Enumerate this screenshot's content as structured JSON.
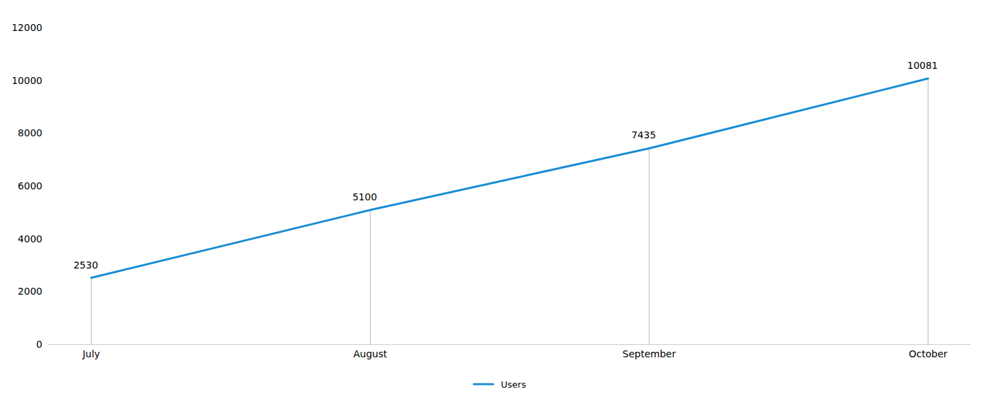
{
  "chart_data": {
    "type": "line",
    "categories": [
      "July",
      "August",
      "September",
      "October"
    ],
    "series": [
      {
        "name": "Users",
        "color": "#1a8dd4",
        "values": [
          2530,
          5100,
          7435,
          10081
        ]
      }
    ],
    "ylim": [
      0,
      12000
    ],
    "yticks": [
      0,
      2000,
      4000,
      6000,
      8000,
      10000,
      12000
    ],
    "grid": false,
    "legend": "bottom",
    "data_labels": true
  }
}
